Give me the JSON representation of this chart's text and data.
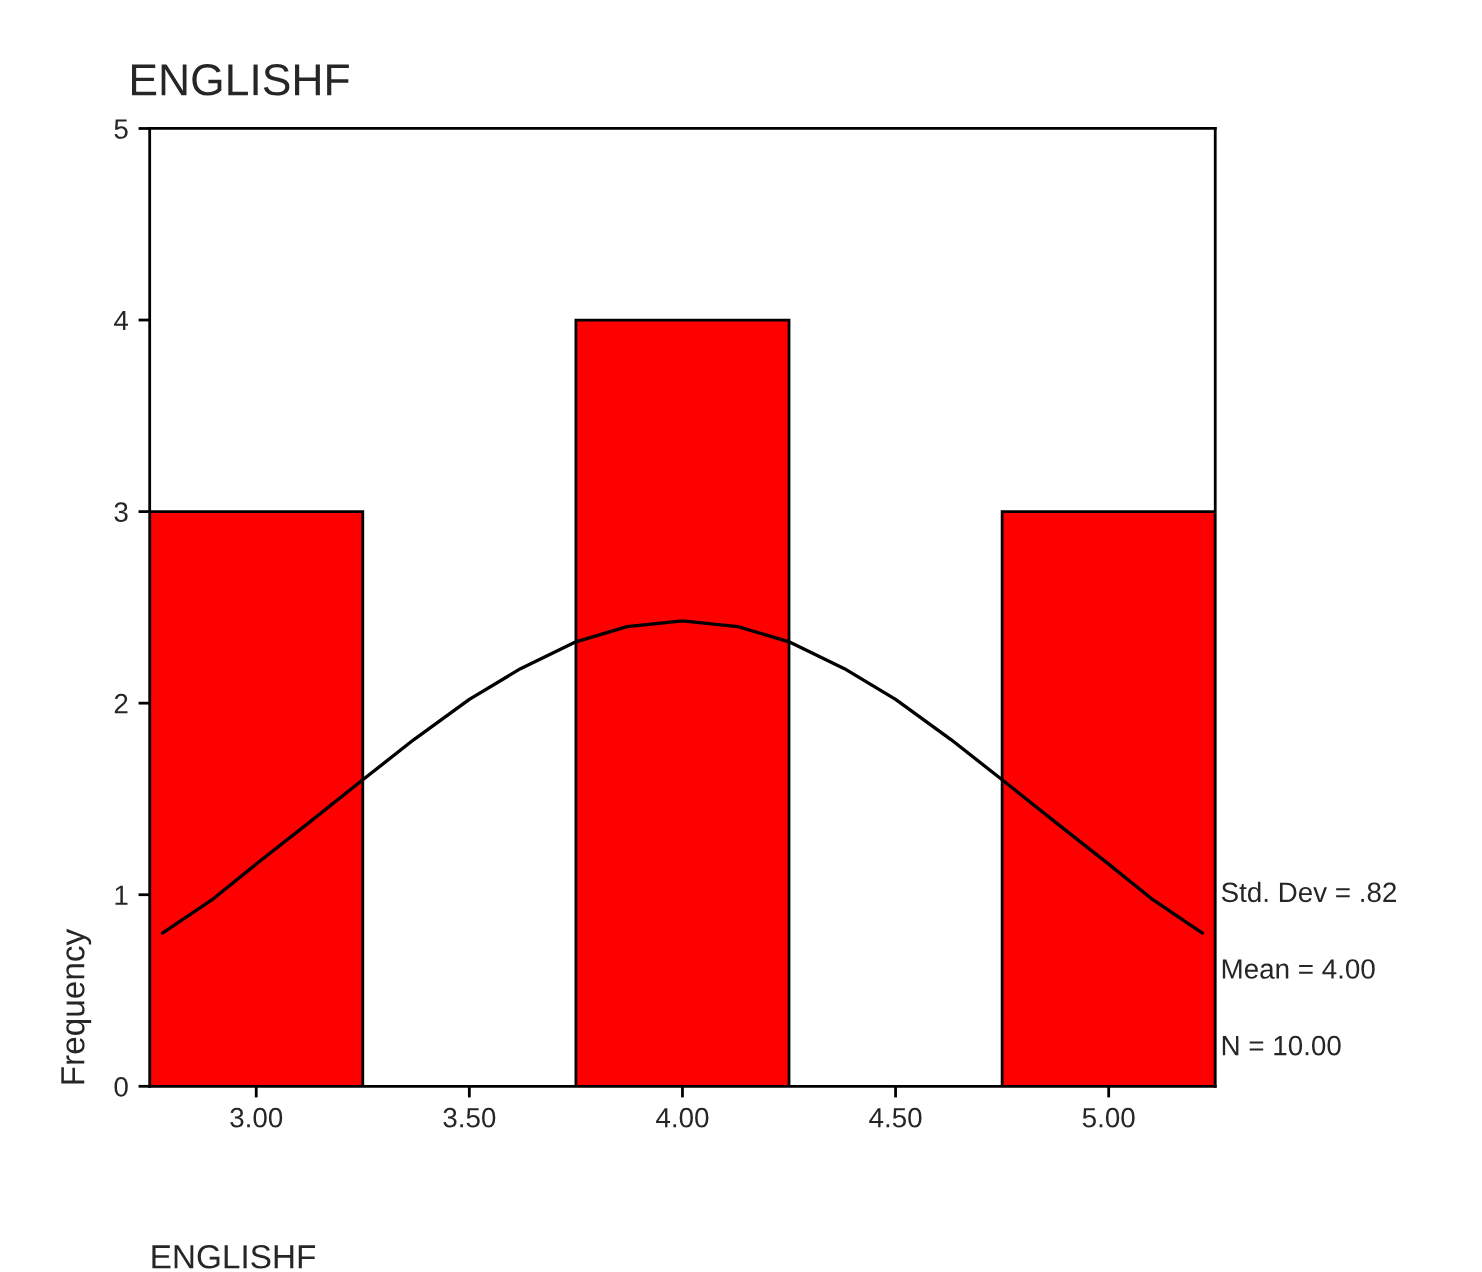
{
  "chart_data": {
    "type": "histogram",
    "title": "ENGLISHF",
    "xlabel": "ENGLISHF",
    "ylabel": "Frequency",
    "bins": [
      2.75,
      3.25,
      3.75,
      4.25,
      4.75,
      5.25
    ],
    "values": [
      3,
      0,
      4,
      0,
      3
    ],
    "color": "#ff0000",
    "series": [
      {
        "type": "line",
        "color": "#000000",
        "x": [
          2.78,
          2.9,
          3.0,
          3.12,
          3.25,
          3.37,
          3.5,
          3.62,
          3.75,
          3.87,
          4.0,
          4.13,
          4.25,
          4.38,
          4.5,
          4.63,
          4.75,
          4.88,
          5.0,
          5.1,
          5.22
        ],
        "values": [
          0.8,
          0.98,
          1.16,
          1.37,
          1.6,
          1.81,
          2.02,
          2.18,
          2.32,
          2.4,
          2.43,
          2.4,
          2.32,
          2.18,
          2.02,
          1.81,
          1.6,
          1.37,
          1.16,
          0.98,
          0.8
        ]
      }
    ],
    "xlim": [
      2.75,
      5.25
    ],
    "xticks": [
      {
        "value": 3,
        "label": "3.00"
      },
      {
        "value": 3.5,
        "label": "3.50"
      },
      {
        "value": 4,
        "label": "4.00"
      },
      {
        "value": 4.5,
        "label": "4.50"
      },
      {
        "value": 5,
        "label": "5.00"
      }
    ],
    "ylim": [
      0,
      5
    ],
    "yticks": [
      0,
      1,
      2,
      3,
      4,
      5
    ],
    "annotations": [
      "Std. Dev = .82",
      "Mean = 4.00",
      "N = 10.00"
    ],
    "grid": false,
    "legend": false
  }
}
